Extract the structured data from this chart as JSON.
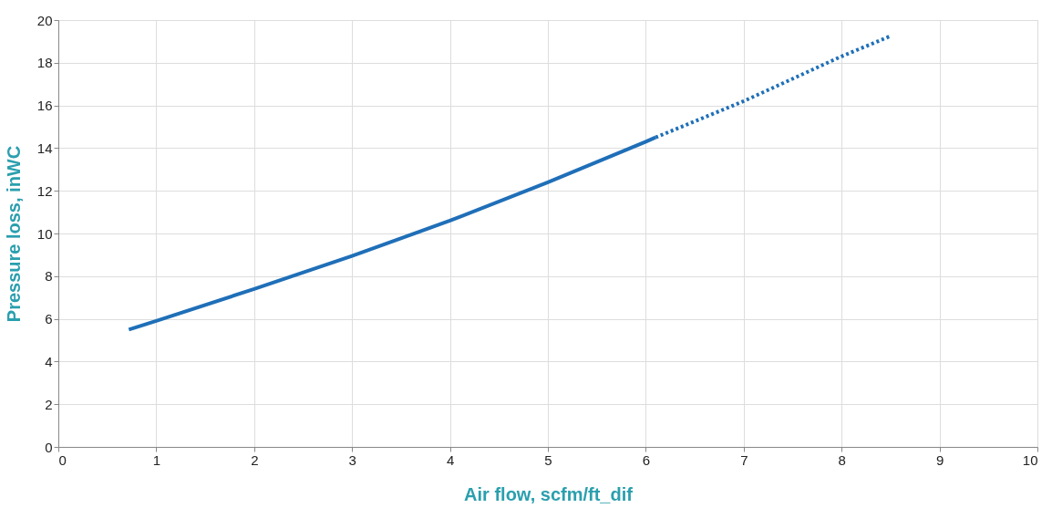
{
  "chart_data": {
    "type": "line",
    "xlabel": "Air flow, scfm/ft_dif",
    "ylabel": "Pressure loss, inWC",
    "xlim": [
      0,
      10
    ],
    "xticks": [
      0,
      1,
      2,
      3,
      4,
      5,
      6,
      7,
      8,
      9,
      10
    ],
    "ylim": [
      0,
      20
    ],
    "yticks": [
      0,
      2,
      4,
      6,
      8,
      10,
      12,
      14,
      16,
      18,
      20
    ],
    "grid": true,
    "marker": "none",
    "series": [
      {
        "color": "#1f6fb8",
        "line_style": "solid",
        "x": [
          0.72,
          1,
          2,
          3,
          4,
          5,
          6,
          6.1
        ],
        "values": [
          5.5,
          5.9,
          7.4,
          8.95,
          10.6,
          12.4,
          14.3,
          14.5
        ]
      },
      {
        "color": "#1f6fb8",
        "line_style": "dotted",
        "x": [
          6.1,
          7,
          8,
          8.5
        ],
        "values": [
          14.5,
          16.2,
          18.3,
          19.25
        ]
      }
    ]
  }
}
